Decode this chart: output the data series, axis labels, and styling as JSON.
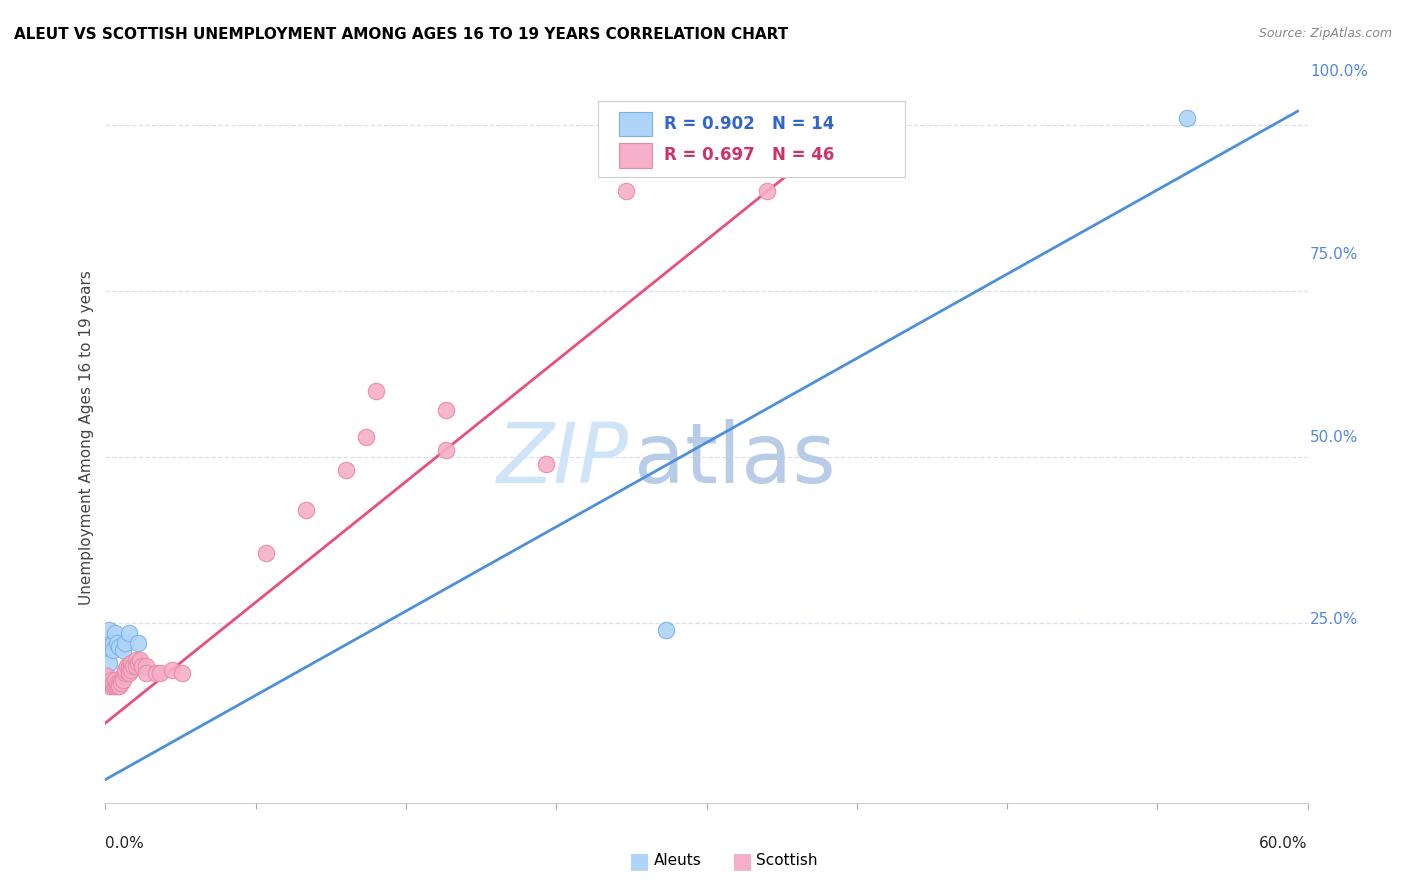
{
  "title": "ALEUT VS SCOTTISH UNEMPLOYMENT AMONG AGES 16 TO 19 YEARS CORRELATION CHART",
  "source": "Source: ZipAtlas.com",
  "ylabel": "Unemployment Among Ages 16 to 19 years",
  "xmin": 0.0,
  "xmax": 0.6,
  "ymin": -0.02,
  "ymax": 1.08,
  "aleut_color": "#aed4f7",
  "aleut_edge": "#7ab0e8",
  "scottish_color": "#f5afc8",
  "scottish_edge": "#e888a8",
  "aleut_line_color": "#4d8fdb",
  "scottish_line_color": "#e8507a",
  "aleut_R": 0.902,
  "aleut_N": 14,
  "scottish_R": 0.697,
  "scottish_N": 46,
  "right_tick_color": "#5588dd",
  "ytick_values": [
    0.25,
    0.5,
    0.75,
    1.0
  ],
  "ytick_labels": [
    "25.0%",
    "50.0%",
    "75.0%",
    "100.0%"
  ],
  "grid_color": "#ddddee",
  "watermark_zip_color": "#d0e4f8",
  "watermark_atlas_color": "#b8cce8",
  "aleut_points": [
    [
      0.001,
      0.215
    ],
    [
      0.002,
      0.24
    ],
    [
      0.002,
      0.19
    ],
    [
      0.004,
      0.22
    ],
    [
      0.004,
      0.21
    ],
    [
      0.005,
      0.235
    ],
    [
      0.006,
      0.22
    ],
    [
      0.007,
      0.215
    ],
    [
      0.009,
      0.21
    ],
    [
      0.01,
      0.22
    ],
    [
      0.012,
      0.235
    ],
    [
      0.016,
      0.22
    ],
    [
      0.28,
      0.24
    ],
    [
      0.54,
      1.01
    ]
  ],
  "scottish_points": [
    [
      0.001,
      0.16
    ],
    [
      0.001,
      0.17
    ],
    [
      0.002,
      0.155
    ],
    [
      0.002,
      0.16
    ],
    [
      0.003,
      0.16
    ],
    [
      0.003,
      0.165
    ],
    [
      0.004,
      0.155
    ],
    [
      0.004,
      0.16
    ],
    [
      0.005,
      0.155
    ],
    [
      0.005,
      0.165
    ],
    [
      0.006,
      0.155
    ],
    [
      0.006,
      0.16
    ],
    [
      0.007,
      0.16
    ],
    [
      0.007,
      0.155
    ],
    [
      0.008,
      0.16
    ],
    [
      0.009,
      0.17
    ],
    [
      0.009,
      0.165
    ],
    [
      0.01,
      0.175
    ],
    [
      0.01,
      0.18
    ],
    [
      0.011,
      0.185
    ],
    [
      0.012,
      0.185
    ],
    [
      0.012,
      0.175
    ],
    [
      0.013,
      0.19
    ],
    [
      0.013,
      0.18
    ],
    [
      0.014,
      0.185
    ],
    [
      0.015,
      0.195
    ],
    [
      0.015,
      0.185
    ],
    [
      0.016,
      0.19
    ],
    [
      0.017,
      0.195
    ],
    [
      0.018,
      0.185
    ],
    [
      0.02,
      0.185
    ],
    [
      0.02,
      0.175
    ],
    [
      0.025,
      0.175
    ],
    [
      0.027,
      0.175
    ],
    [
      0.033,
      0.18
    ],
    [
      0.038,
      0.175
    ],
    [
      0.08,
      0.355
    ],
    [
      0.1,
      0.42
    ],
    [
      0.12,
      0.48
    ],
    [
      0.13,
      0.53
    ],
    [
      0.135,
      0.6
    ],
    [
      0.17,
      0.57
    ],
    [
      0.17,
      0.51
    ],
    [
      0.22,
      0.49
    ],
    [
      0.26,
      0.9
    ],
    [
      0.33,
      0.9
    ]
  ],
  "blue_line": [
    [
      0.0,
      0.015
    ],
    [
      0.595,
      1.02
    ]
  ],
  "pink_line": [
    [
      0.0,
      0.1
    ],
    [
      0.38,
      1.02
    ]
  ]
}
